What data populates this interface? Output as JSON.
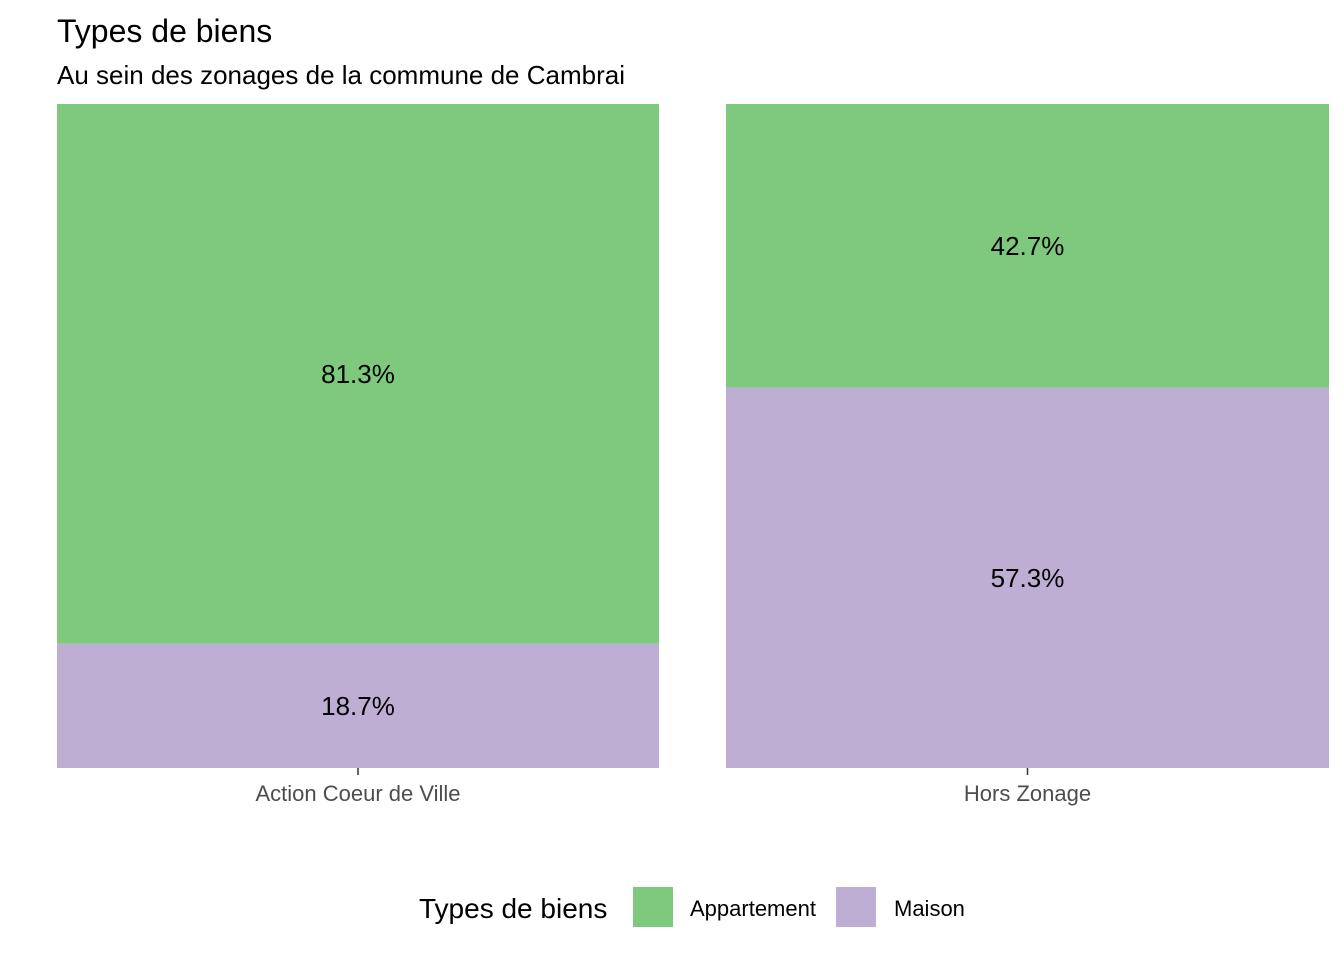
{
  "chart_data": {
    "type": "bar",
    "stacked": true,
    "percent": true,
    "title": "Types de biens",
    "subtitle": "Au sein des zonages de la commune de Cambrai",
    "xlabel": "",
    "ylabel": "",
    "categories": [
      "Action Coeur de Ville",
      "Hors Zonage"
    ],
    "series": [
      {
        "name": "Appartement",
        "color": "#7fc97f",
        "values": [
          81.3,
          42.7
        ],
        "labels": [
          "81.3%",
          "42.7%"
        ]
      },
      {
        "name": "Maison",
        "color": "#beaed4",
        "values": [
          18.7,
          57.3
        ],
        "labels": [
          "18.7%",
          "57.3%"
        ]
      }
    ],
    "ylim": [
      0,
      100
    ],
    "grid": false,
    "legend": {
      "title": "Types de biens",
      "position": "bottom",
      "entries": [
        "Appartement",
        "Maison"
      ]
    }
  }
}
